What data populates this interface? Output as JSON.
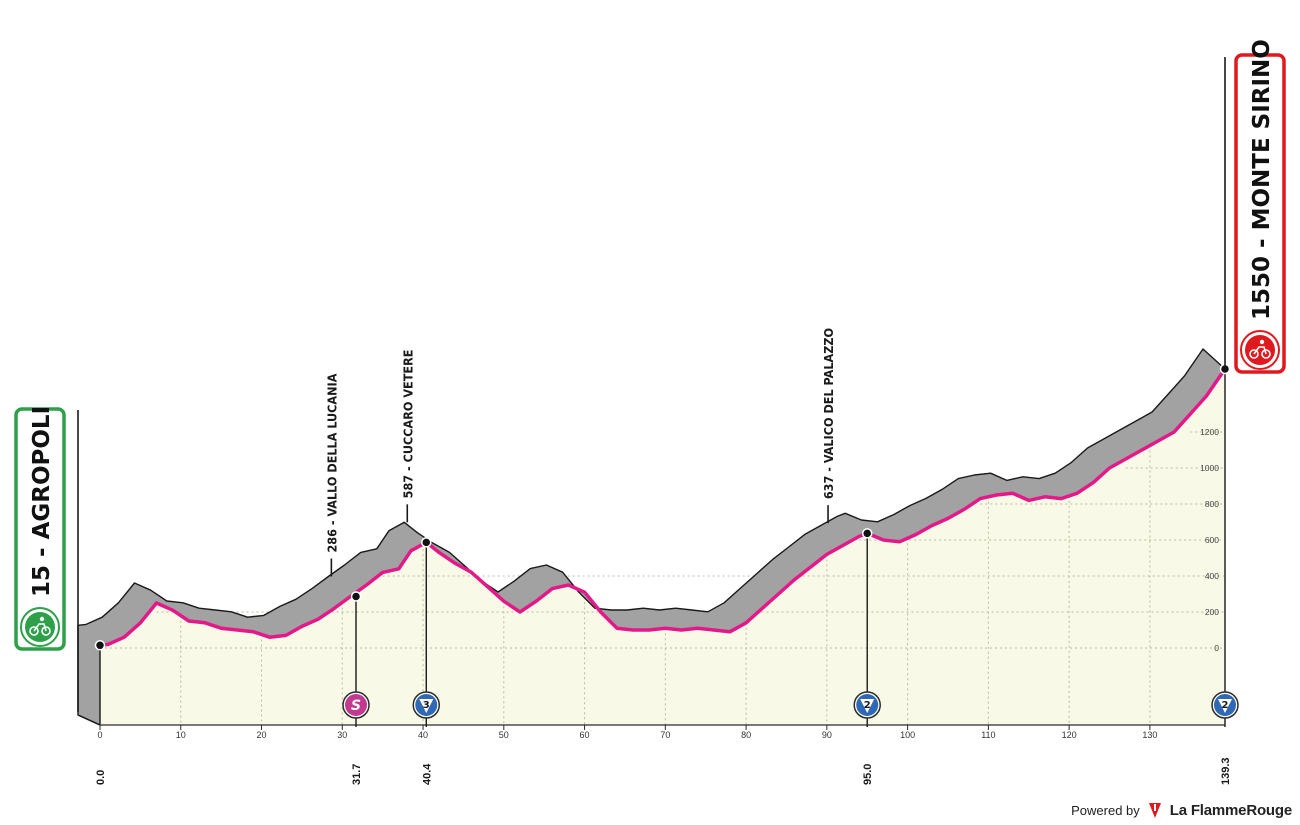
{
  "chart_data": {
    "type": "area",
    "title": "",
    "xlabel": "",
    "ylabel": "",
    "xlim": [
      0,
      139.3
    ],
    "ylim": [
      0,
      1300
    ],
    "x_ticks": [
      0,
      10,
      20,
      30,
      40,
      50,
      60,
      70,
      80,
      90,
      100,
      110,
      120,
      130
    ],
    "x_tick_labels": [
      "0",
      "10",
      "20",
      "30",
      "40",
      "50",
      "60",
      "70",
      "80",
      "90",
      "100",
      "110",
      "120",
      "130"
    ],
    "y_ticks": [
      0,
      200,
      400,
      600,
      800,
      1000,
      1200
    ],
    "y_tick_labels": [
      "0",
      "200",
      "400",
      "600",
      "800",
      "1000",
      "1200"
    ],
    "grid": true,
    "series": [
      {
        "x": [
          0,
          1,
          3,
          5,
          7,
          9,
          11,
          13,
          15,
          17,
          19,
          21,
          23,
          25,
          27,
          29,
          31,
          33,
          35,
          37,
          38.5,
          40.4,
          42,
          44,
          46,
          48,
          50,
          52,
          54,
          56,
          58,
          60,
          62,
          64,
          66,
          68,
          70,
          72,
          74,
          76,
          78,
          80,
          82,
          84,
          86,
          88,
          90,
          92,
          94,
          95,
          97,
          99,
          101,
          103,
          105,
          107,
          109,
          111,
          113,
          115,
          117,
          119,
          121,
          123,
          125,
          127,
          129,
          131,
          133,
          135,
          137,
          139.3
        ],
        "y": [
          15,
          20,
          60,
          140,
          250,
          210,
          150,
          140,
          110,
          100,
          90,
          60,
          70,
          120,
          160,
          220,
          286,
          350,
          420,
          440,
          540,
          587,
          530,
          470,
          420,
          340,
          260,
          200,
          260,
          330,
          350,
          310,
          200,
          110,
          100,
          100,
          110,
          100,
          110,
          100,
          90,
          140,
          220,
          300,
          380,
          450,
          520,
          570,
          620,
          637,
          600,
          590,
          630,
          680,
          720,
          770,
          830,
          850,
          860,
          820,
          840,
          830,
          860,
          920,
          1000,
          1050,
          1100,
          1150,
          1200,
          1300,
          1400,
          1550
        ]
      }
    ],
    "waypoints": [
      {
        "km": 0.0,
        "km_label": "0.0",
        "elev": 15
      },
      {
        "km": 31.7,
        "km_label": "31.7",
        "elev": 286
      },
      {
        "km": 40.4,
        "km_label": "40.4",
        "elev": 587
      },
      {
        "km": 95.0,
        "km_label": "95.0",
        "elev": 637
      },
      {
        "km": 139.3,
        "km_label": "139.3",
        "elev": 1550
      }
    ],
    "places": [
      {
        "km": 31.0,
        "label": "286 - VALLO DELLA LUCANIA"
      },
      {
        "km": 40.4,
        "label": "587 - CUCCARO VETERE"
      },
      {
        "km": 92.5,
        "label": "637 - VALICO DEL PALAZZO"
      }
    ],
    "badges": [
      {
        "km": 31.7,
        "text": "S",
        "color": "#c2398f"
      },
      {
        "km": 40.4,
        "text": "3",
        "color": "#2f69b6"
      },
      {
        "km": 95.0,
        "text": "2",
        "color": "#2f69b6"
      },
      {
        "km": 139.3,
        "text": "2",
        "color": "#2f69b6"
      }
    ],
    "start": {
      "label": "15 - AGROPOLI",
      "color": "#2ea04a"
    },
    "finish": {
      "label": "1550 - MONTE SIRINO",
      "color": "#e0191f"
    },
    "colors": {
      "route": "#e3198a",
      "side": "#a2a2a2",
      "fill": "#f8f9e7",
      "grid": "#b9bca0"
    }
  },
  "credit": {
    "powered": "Powered by",
    "brand": "La FlammeRouge"
  }
}
